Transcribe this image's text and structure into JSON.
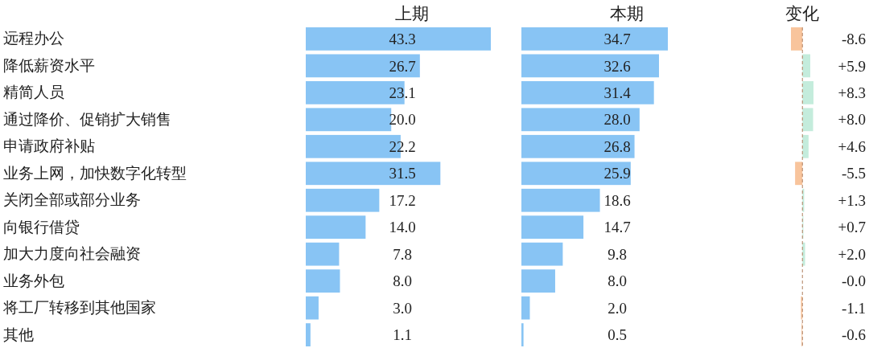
{
  "chart_data": [
    {
      "type": "bar",
      "orientation": "horizontal",
      "title": "上期",
      "categories": [
        "远程办公",
        "降低薪资水平",
        "精简人员",
        "通过降价、促销扩大销售",
        "申请政府补贴",
        "业务上网，加快数字化转型",
        "关闭全部或部分业务",
        "向银行借贷",
        "加大力度向社会融资",
        "业务外包",
        "将工厂转移到其他国家",
        "其他"
      ],
      "values": [
        43.3,
        26.7,
        23.1,
        20.0,
        22.2,
        31.5,
        17.2,
        14.0,
        7.8,
        8.0,
        3.0,
        1.1
      ],
      "value_labels": [
        "43.3",
        "26.7",
        "23.1",
        "20.0",
        "22.2",
        "31.5",
        "17.2",
        "14.0",
        "7.8",
        "8.0",
        "3.0",
        "1.1"
      ],
      "color": "#88c4f4",
      "tick_labels": "y"
    },
    {
      "type": "bar",
      "orientation": "horizontal",
      "title": "本期",
      "values": [
        34.7,
        32.6,
        31.4,
        28.0,
        26.8,
        25.9,
        18.6,
        14.7,
        9.8,
        8.0,
        2.0,
        0.5
      ],
      "value_labels": [
        "34.7",
        "32.6",
        "31.4",
        "28.0",
        "26.8",
        "25.9",
        "18.6",
        "14.7",
        "9.8",
        "8.0",
        "2.0",
        "0.5"
      ],
      "color": "#88c4f4",
      "tick_labels": false
    },
    {
      "type": "bar",
      "orientation": "horizontal",
      "title": "变化",
      "values": [
        -8.6,
        5.9,
        8.3,
        8.0,
        4.6,
        -5.5,
        1.3,
        0.7,
        2.0,
        0,
        -1.1,
        -0.6
      ],
      "value_labels": [
        "-8.6",
        "+5.9",
        "+8.3",
        "+8.0",
        "+4.6",
        "-5.5",
        "+1.3",
        "+0.7",
        "+2.0",
        "-0.0",
        "-1.1",
        "-0.6"
      ],
      "colors": [
        "#f8c49c",
        "#c4ecdc",
        "#c4ecdc",
        "#c4ecdc",
        "#c4ecdc",
        "#f8c49c",
        "#c4ecdc",
        "#c4ecdc",
        "#c4ecdc",
        "#c4ecdc",
        "#f8c49c",
        "#f8c49c"
      ],
      "tick_labels": false,
      "ref_lines": [
        {
          "axis": "x",
          "value": 0,
          "color": "#b08060",
          "line_style": "dashed"
        }
      ]
    }
  ]
}
